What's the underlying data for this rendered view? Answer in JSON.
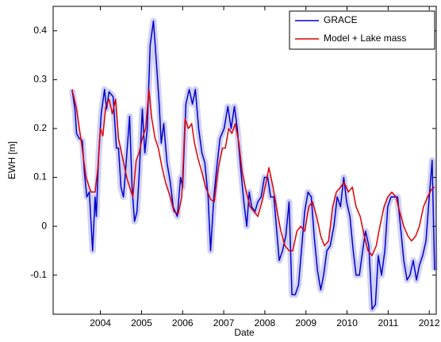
{
  "chart_data": {
    "type": "line",
    "xlabel": "Date",
    "ylabel": "EWH [m]",
    "xlim": [
      2002.85,
      2012.17
    ],
    "ylim": [
      -0.18,
      0.45
    ],
    "xticks": [
      2004,
      2005,
      2006,
      2007,
      2008,
      2009,
      2010,
      2011,
      2012
    ],
    "yticks": [
      -0.1,
      0,
      0.1,
      0.2,
      0.3,
      0.4
    ],
    "grid": false,
    "legend": "upper right",
    "series": [
      {
        "name": "GRACE",
        "color": "#0000cc",
        "x": [
          2003.31,
          2003.38,
          2003.42,
          2003.48,
          2003.56,
          2003.61,
          2003.67,
          2003.73,
          2003.81,
          2003.87,
          2003.9,
          2003.96,
          2004.02,
          2004.1,
          2004.15,
          2004.21,
          2004.31,
          2004.39,
          2004.44,
          2004.5,
          2004.56,
          2004.6,
          2004.71,
          2004.77,
          2004.83,
          2004.89,
          2004.94,
          2005.02,
          2005.08,
          2005.14,
          2005.21,
          2005.29,
          2005.35,
          2005.43,
          2005.48,
          2005.54,
          2005.62,
          2005.7,
          2005.77,
          2005.87,
          2005.95,
          2006.0,
          2006.08,
          2006.16,
          2006.24,
          2006.31,
          2006.39,
          2006.47,
          2006.54,
          2006.62,
          2006.68,
          2006.76,
          2006.83,
          2006.91,
          2007.01,
          2007.1,
          2007.18,
          2007.26,
          2007.33,
          2007.41,
          2007.49,
          2007.56,
          2007.62,
          2007.68,
          2007.76,
          2007.83,
          2007.91,
          2007.99,
          2008.07,
          2008.14,
          2008.22,
          2008.28,
          2008.35,
          2008.43,
          2008.51,
          2008.59,
          2008.66,
          2008.74,
          2008.82,
          2008.89,
          2008.97,
          2009.05,
          2009.13,
          2009.2,
          2009.28,
          2009.36,
          2009.43,
          2009.51,
          2009.59,
          2009.68,
          2009.76,
          2009.84,
          2009.92,
          2009.99,
          2010.07,
          2010.15,
          2010.22,
          2010.3,
          2010.38,
          2010.45,
          2010.53,
          2010.61,
          2010.69,
          2010.76,
          2010.84,
          2010.92,
          2010.99,
          2011.07,
          2011.15,
          2011.23,
          2011.3,
          2011.38,
          2011.46,
          2011.53,
          2011.61,
          2011.69,
          2011.76,
          2011.84,
          2011.92,
          2012.0,
          2012.07,
          2012.13
        ],
        "values": [
          0.28,
          0.24,
          0.19,
          0.18,
          0.175,
          0.11,
          0.06,
          0.07,
          -0.05,
          0.06,
          0.02,
          0.15,
          0.23,
          0.28,
          0.24,
          0.275,
          0.265,
          0.16,
          0.16,
          0.08,
          0.06,
          0.1,
          0.225,
          0.08,
          0.01,
          0.03,
          0.1,
          0.24,
          0.15,
          0.2,
          0.37,
          0.42,
          0.35,
          0.25,
          0.17,
          0.21,
          0.13,
          0.09,
          0.04,
          0.02,
          0.1,
          0.08,
          0.25,
          0.28,
          0.25,
          0.28,
          0.2,
          0.15,
          0.13,
          0.06,
          -0.05,
          0.06,
          0.12,
          0.18,
          0.2,
          0.245,
          0.2,
          0.245,
          0.2,
          0.12,
          0.05,
          0.0,
          0.07,
          0.04,
          0.03,
          0.05,
          0.06,
          0.1,
          0.1,
          0.06,
          0.06,
          0.0,
          -0.07,
          -0.05,
          -0.02,
          0.05,
          -0.14,
          -0.14,
          -0.12,
          -0.05,
          0.03,
          0.07,
          0.06,
          -0.02,
          -0.09,
          -0.13,
          -0.1,
          -0.05,
          -0.04,
          0.0,
          0.06,
          0.04,
          0.1,
          0.05,
          0.02,
          -0.05,
          -0.1,
          -0.1,
          -0.05,
          -0.01,
          -0.04,
          -0.17,
          -0.16,
          -0.06,
          -0.1,
          -0.05,
          0.04,
          0.06,
          0.06,
          0.06,
          0.0,
          -0.07,
          -0.11,
          -0.1,
          -0.07,
          -0.11,
          -0.08,
          -0.06,
          -0.03,
          0.06,
          0.135,
          -0.09
        ]
      },
      {
        "name": "Model + Lake mass",
        "color": "#dd0000",
        "x": [
          2003.31,
          2003.42,
          2003.54,
          2003.65,
          2003.77,
          2003.87,
          2003.94,
          2004.0,
          2004.06,
          2004.13,
          2004.21,
          2004.29,
          2004.37,
          2004.44,
          2004.54,
          2004.64,
          2004.71,
          2004.79,
          2004.87,
          2004.94,
          2005.02,
          2005.1,
          2005.18,
          2005.25,
          2005.33,
          2005.41,
          2005.5,
          2005.6,
          2005.7,
          2005.79,
          2005.89,
          2005.98,
          2006.06,
          2006.14,
          2006.22,
          2006.29,
          2006.37,
          2006.47,
          2006.56,
          2006.68,
          2006.77,
          2006.87,
          2006.97,
          2007.04,
          2007.12,
          2007.2,
          2007.28,
          2007.37,
          2007.45,
          2007.55,
          2007.64,
          2007.74,
          2007.83,
          2007.93,
          2008.03,
          2008.1,
          2008.2,
          2008.3,
          2008.39,
          2008.49,
          2008.59,
          2008.68,
          2008.78,
          2008.87,
          2008.97,
          2009.07,
          2009.16,
          2009.26,
          2009.36,
          2009.45,
          2009.55,
          2009.65,
          2009.74,
          2009.84,
          2009.93,
          2010.03,
          2010.13,
          2010.22,
          2010.32,
          2010.42,
          2010.51,
          2010.61,
          2010.71,
          2010.8,
          2010.9,
          2010.99,
          2011.09,
          2011.19,
          2011.28,
          2011.38,
          2011.48,
          2011.57,
          2011.67,
          2011.76,
          2011.86,
          2011.96,
          2012.05,
          2012.13
        ],
        "values": [
          0.28,
          0.24,
          0.17,
          0.1,
          0.07,
          0.07,
          0.12,
          0.2,
          0.185,
          0.245,
          0.26,
          0.23,
          0.26,
          0.18,
          0.14,
          0.1,
          0.08,
          0.06,
          0.135,
          0.15,
          0.18,
          0.2,
          0.28,
          0.22,
          0.18,
          0.16,
          0.12,
          0.085,
          0.06,
          0.03,
          0.025,
          0.06,
          0.22,
          0.2,
          0.21,
          0.17,
          0.14,
          0.11,
          0.08,
          0.055,
          0.05,
          0.12,
          0.16,
          0.16,
          0.2,
          0.19,
          0.21,
          0.17,
          0.11,
          0.07,
          0.04,
          0.03,
          0.02,
          0.05,
          0.09,
          0.12,
          0.08,
          0.03,
          -0.01,
          -0.04,
          -0.05,
          -0.05,
          -0.01,
          0.0,
          -0.01,
          0.04,
          0.05,
          0.02,
          -0.02,
          -0.04,
          -0.03,
          0.04,
          0.07,
          0.08,
          0.09,
          0.07,
          0.08,
          0.04,
          0.02,
          -0.02,
          -0.05,
          -0.06,
          -0.04,
          0.0,
          0.04,
          0.06,
          0.07,
          0.06,
          0.03,
          0.0,
          -0.02,
          -0.03,
          -0.02,
          0.0,
          0.04,
          0.06,
          0.075,
          0.08
        ]
      }
    ]
  }
}
